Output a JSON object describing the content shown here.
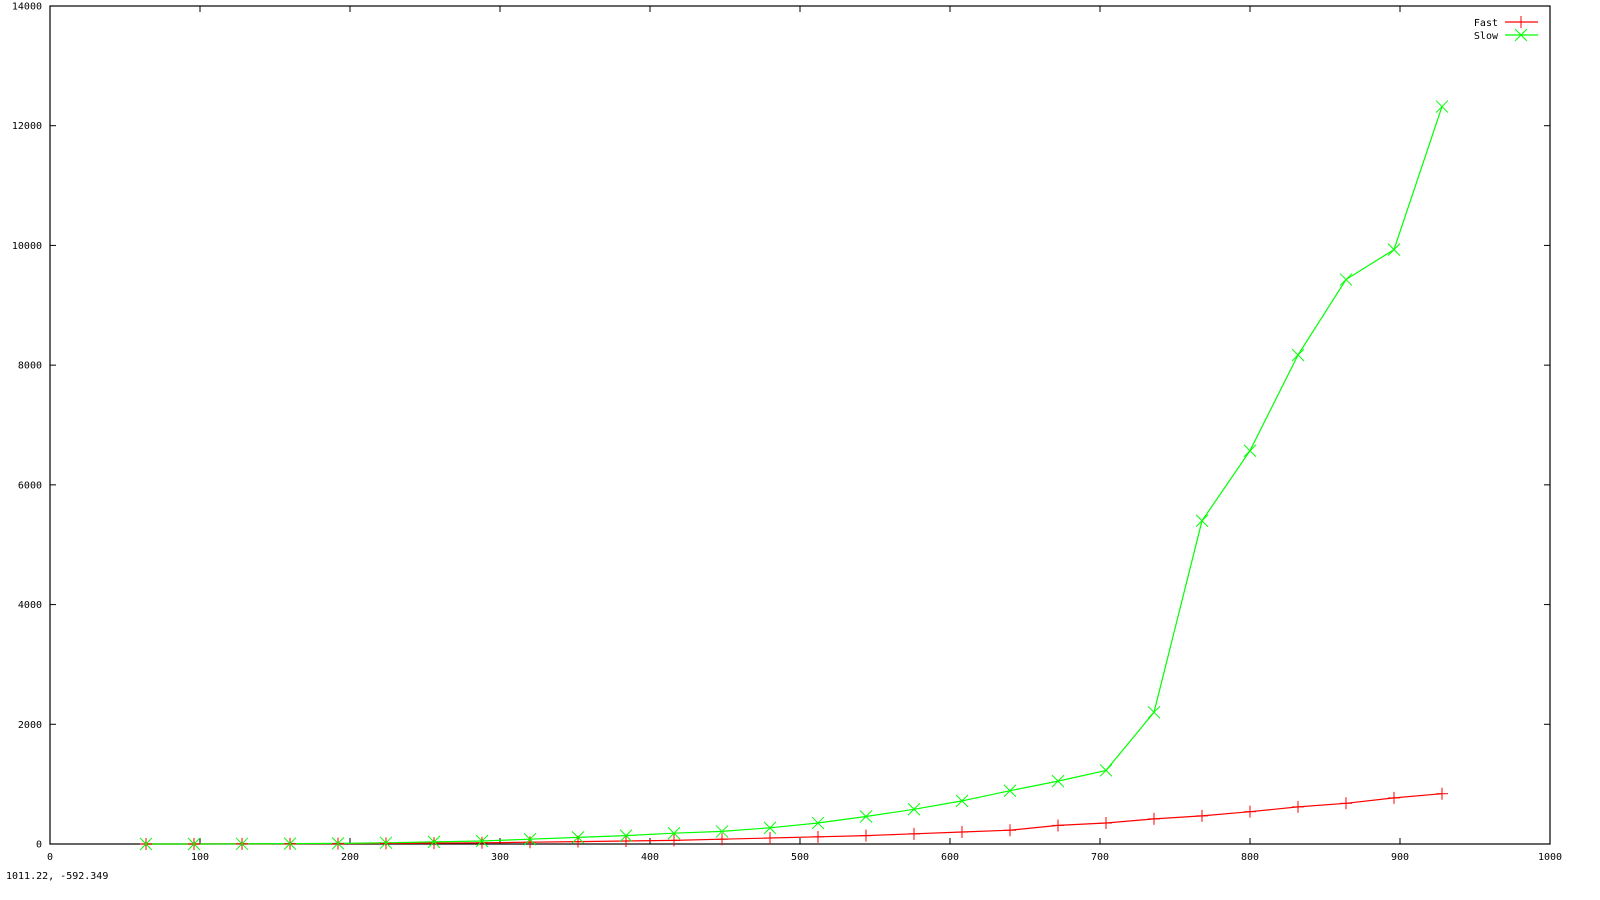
{
  "window": {
    "status_coords": "1011.22, -592.349"
  },
  "chart_data": {
    "type": "line",
    "title": "",
    "xlabel": "",
    "ylabel": "",
    "xlim": [
      0,
      1000
    ],
    "ylim": [
      0,
      14000
    ],
    "xticks": [
      0,
      100,
      200,
      300,
      400,
      500,
      600,
      700,
      800,
      900,
      1000
    ],
    "yticks": [
      0,
      2000,
      4000,
      6000,
      8000,
      10000,
      12000,
      14000
    ],
    "grid": false,
    "legend_position": "top-right",
    "series": [
      {
        "name": "Fast",
        "color": "#ff0000",
        "marker": "plus",
        "x": [
          64,
          96,
          128,
          160,
          192,
          224,
          256,
          288,
          320,
          352,
          384,
          416,
          448,
          480,
          512,
          544,
          576,
          608,
          640,
          672,
          704,
          736,
          768,
          800,
          832,
          864,
          896,
          928
        ],
        "y": [
          0,
          0,
          2,
          4,
          6,
          10,
          15,
          20,
          30,
          40,
          50,
          60,
          80,
          100,
          120,
          140,
          170,
          200,
          230,
          310,
          350,
          420,
          470,
          540,
          620,
          680,
          770,
          840
        ]
      },
      {
        "name": "Slow",
        "color": "#00ff00",
        "marker": "cross",
        "x": [
          64,
          96,
          128,
          160,
          192,
          224,
          256,
          288,
          320,
          352,
          384,
          416,
          448,
          480,
          512,
          544,
          576,
          608,
          640,
          672,
          704,
          736,
          768,
          800,
          832,
          864,
          896,
          928
        ],
        "y": [
          0,
          0,
          3,
          6,
          10,
          20,
          35,
          50,
          80,
          110,
          140,
          180,
          210,
          270,
          350,
          460,
          580,
          720,
          890,
          1050,
          1230,
          2200,
          5400,
          6570,
          8170,
          9430,
          9930,
          12320
        ]
      }
    ]
  }
}
